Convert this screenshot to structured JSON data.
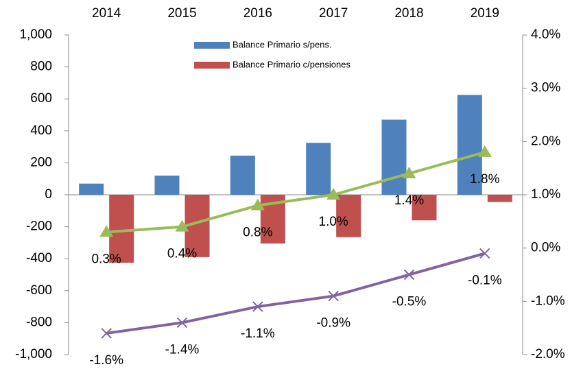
{
  "chart_data": {
    "type": "bar",
    "categories": [
      "2014",
      "2015",
      "2016",
      "2017",
      "2018",
      "2019"
    ],
    "series": [
      {
        "name": "Balance Primario s/pens.",
        "color": "#4f81bd",
        "values": [
          70,
          120,
          245,
          325,
          470,
          625
        ]
      },
      {
        "name": "Balance Primario c/pensiones",
        "color": "#c0504d",
        "values": [
          -425,
          -390,
          -305,
          -265,
          -160,
          -45
        ]
      },
      {
        "type": "line",
        "axis": "y2",
        "color": "#9bbb59",
        "marker": "triangle",
        "values": [
          0.3,
          0.4,
          0.8,
          1.0,
          1.4,
          1.8
        ],
        "value_labels": [
          "0.3%",
          "0.4%",
          "0.8%",
          "1.0%",
          "1.4%",
          "1.8%"
        ]
      },
      {
        "type": "line",
        "axis": "y2",
        "color": "#8064a2",
        "marker": "x",
        "values": [
          -1.6,
          -1.4,
          -1.1,
          -0.9,
          -0.5,
          -0.1
        ],
        "value_labels": [
          "-1.6%",
          "-1.4%",
          "-1.1%",
          "-0.9%",
          "-0.5%",
          "-0.1%"
        ]
      }
    ],
    "ylim": [
      -1000,
      1000
    ],
    "yticks": [
      {
        "value": 1000,
        "label": "1,000"
      },
      800,
      600,
      400,
      200,
      0,
      -200,
      -400,
      -600,
      -800,
      {
        "value": -1000,
        "label": "-1,000"
      }
    ],
    "y2lim": [
      -2,
      4
    ],
    "y2ticks": [
      {
        "value": 4,
        "label": "4.0%"
      },
      {
        "value": 3,
        "label": "3.0%"
      },
      {
        "value": 2,
        "label": "2.0%"
      },
      {
        "value": 1,
        "label": "1.0%"
      },
      {
        "value": 0,
        "label": "0.0%"
      },
      {
        "value": -1,
        "label": "-1.0%"
      },
      {
        "value": -2,
        "label": "-2.0%"
      }
    ],
    "grid": false,
    "legend": "top"
  }
}
